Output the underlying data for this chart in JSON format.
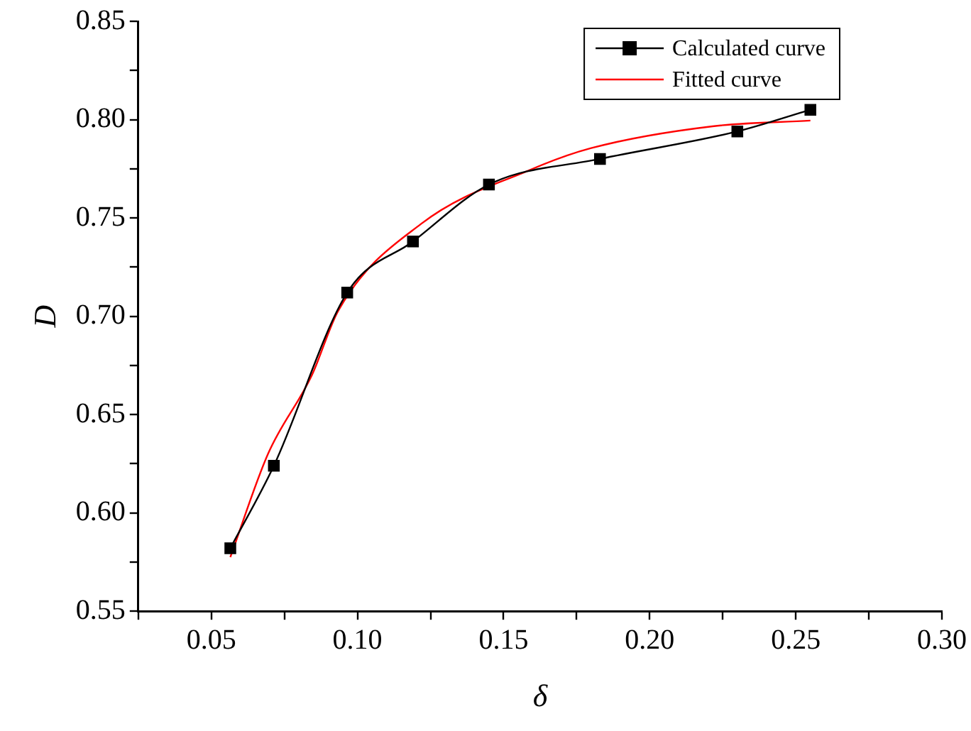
{
  "chart_data": {
    "type": "line",
    "xlabel": "δ",
    "ylabel": "D",
    "legend": "top right",
    "grid": false,
    "xlim": [
      0.025,
      0.3
    ],
    "xticks": [
      {
        "value": 0.025,
        "label": null
      },
      0.05,
      {
        "value": 0.075,
        "label": null
      },
      {
        "value": 0.1,
        "label": "0.10"
      },
      {
        "value": 0.125,
        "label": null
      },
      0.15,
      {
        "value": 0.175,
        "label": null
      },
      {
        "value": 0.2,
        "label": "0.20"
      },
      {
        "value": 0.225,
        "label": null
      },
      0.25,
      {
        "value": 0.275,
        "label": null
      },
      {
        "value": 0.3,
        "label": "0.30"
      }
    ],
    "ylim": [
      0.55,
      0.85
    ],
    "yticks": [
      0.55,
      {
        "value": 0.575,
        "label": null
      },
      {
        "value": 0.6,
        "label": "0.60"
      },
      {
        "value": 0.625,
        "label": null
      },
      0.65,
      {
        "value": 0.675,
        "label": null
      },
      {
        "value": 0.7,
        "label": "0.70"
      },
      {
        "value": 0.725,
        "label": null
      },
      0.75,
      {
        "value": 0.775,
        "label": null
      },
      {
        "value": 0.8,
        "label": "0.80"
      },
      {
        "value": 0.825,
        "label": null
      },
      0.85
    ],
    "series": [
      {
        "name": "Calculated curve",
        "color": "#000000",
        "marker": "square",
        "x": [
          0.0565,
          0.0714,
          0.0965,
          0.119,
          0.145,
          0.183,
          0.23,
          0.255
        ],
        "values": [
          0.582,
          0.624,
          0.712,
          0.738,
          0.767,
          0.78,
          0.794,
          0.805
        ]
      },
      {
        "name": "Fitted curve",
        "color": "#ff0000",
        "marker": "none",
        "x": [
          0.0565,
          0.0694,
          0.0844,
          0.0935,
          0.1218,
          0.16,
          0.18,
          0.2215,
          0.255
        ],
        "values": [
          0.5775,
          0.63,
          0.67,
          0.703,
          0.747,
          0.775,
          0.7855,
          0.7966,
          0.7995
        ]
      }
    ]
  }
}
